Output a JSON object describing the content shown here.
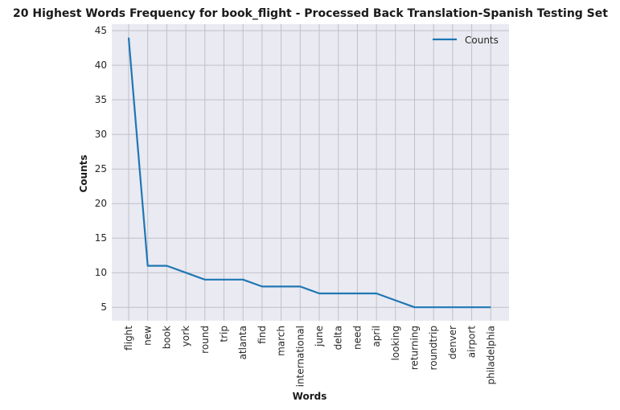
{
  "chart_data": {
    "type": "line",
    "title": "20 Highest Words Frequency for book_flight - Processed Back Translation-Spanish Testing Set",
    "xlabel": "Words",
    "ylabel": "Counts",
    "categories": [
      "flight",
      "new",
      "book",
      "york",
      "round",
      "trip",
      "atlanta",
      "find",
      "march",
      "international",
      "june",
      "delta",
      "need",
      "april",
      "looking",
      "returning",
      "roundtrip",
      "denver",
      "airport",
      "philadelphia"
    ],
    "series": [
      {
        "name": "Counts",
        "values": [
          44,
          11,
          11,
          10,
          9,
          9,
          9,
          8,
          8,
          8,
          7,
          7,
          7,
          7,
          6,
          5,
          5,
          5,
          5,
          5
        ]
      }
    ],
    "yticks": [
      5,
      10,
      15,
      20,
      25,
      30,
      35,
      40,
      45
    ],
    "ylim": [
      3.05,
      45.95
    ],
    "grid": true,
    "legend": "top-right",
    "colors": {
      "line": "#1f77b4",
      "plot_bg": "#eaeaf2",
      "grid": "#c0c0c8"
    }
  }
}
